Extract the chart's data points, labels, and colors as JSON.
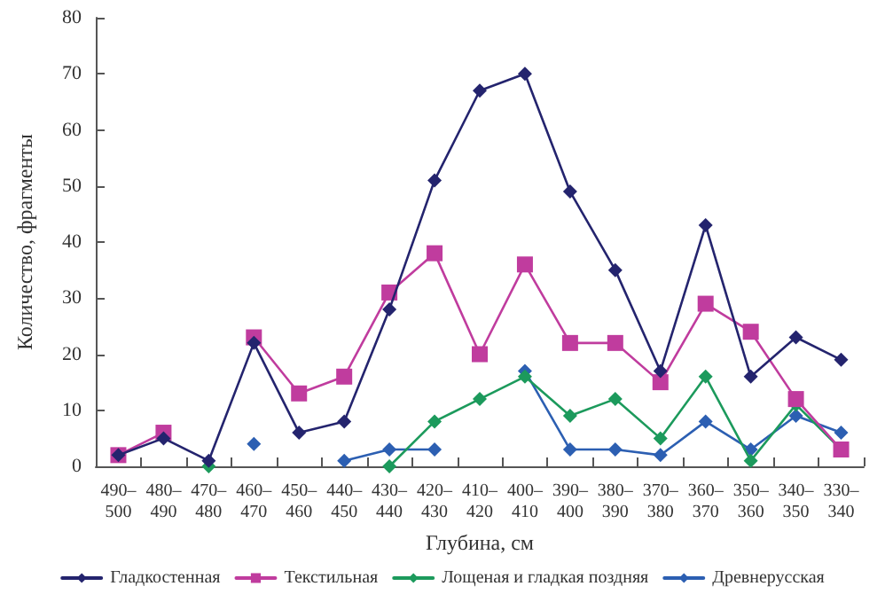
{
  "chart_data": {
    "type": "line",
    "xlabel": "Глубина, см",
    "ylabel": "Количество, фрагменты",
    "categories": [
      "490–500",
      "480–490",
      "470–480",
      "460–470",
      "450–460",
      "440–450",
      "430–440",
      "420–430",
      "410–420",
      "400–410",
      "390–400",
      "380–390",
      "370–380",
      "360–370",
      "350–360",
      "340–350",
      "330–340"
    ],
    "series": [
      {
        "name": "Гладкостенная",
        "color": "#24246e",
        "marker": "diamond",
        "values": [
          2,
          5,
          1,
          22,
          6,
          8,
          28,
          51,
          67,
          70,
          49,
          35,
          17,
          43,
          16,
          23,
          19
        ]
      },
      {
        "name": "Текстильная",
        "color": "#c03c9e",
        "marker": "square",
        "values": [
          2,
          6,
          null,
          23,
          13,
          16,
          31,
          38,
          20,
          36,
          22,
          22,
          15,
          29,
          24,
          12,
          3
        ]
      },
      {
        "name": "Лощеная и гладкая поздняя",
        "color": "#1c9a5c",
        "marker": "diamond",
        "values": [
          null,
          null,
          0,
          null,
          null,
          null,
          0,
          8,
          12,
          16,
          9,
          12,
          5,
          16,
          1,
          11,
          3
        ]
      },
      {
        "name": "Древнерусская",
        "color": "#2c5fb2",
        "marker": "diamond",
        "values": [
          null,
          null,
          null,
          4,
          null,
          1,
          3,
          3,
          null,
          17,
          3,
          3,
          2,
          8,
          3,
          9,
          6
        ]
      }
    ],
    "ylim": [
      0,
      80
    ],
    "yticks": [
      0,
      10,
      20,
      30,
      40,
      50,
      60,
      70,
      80
    ],
    "grid": false,
    "legend": "bottom",
    "line_style": "solid"
  }
}
